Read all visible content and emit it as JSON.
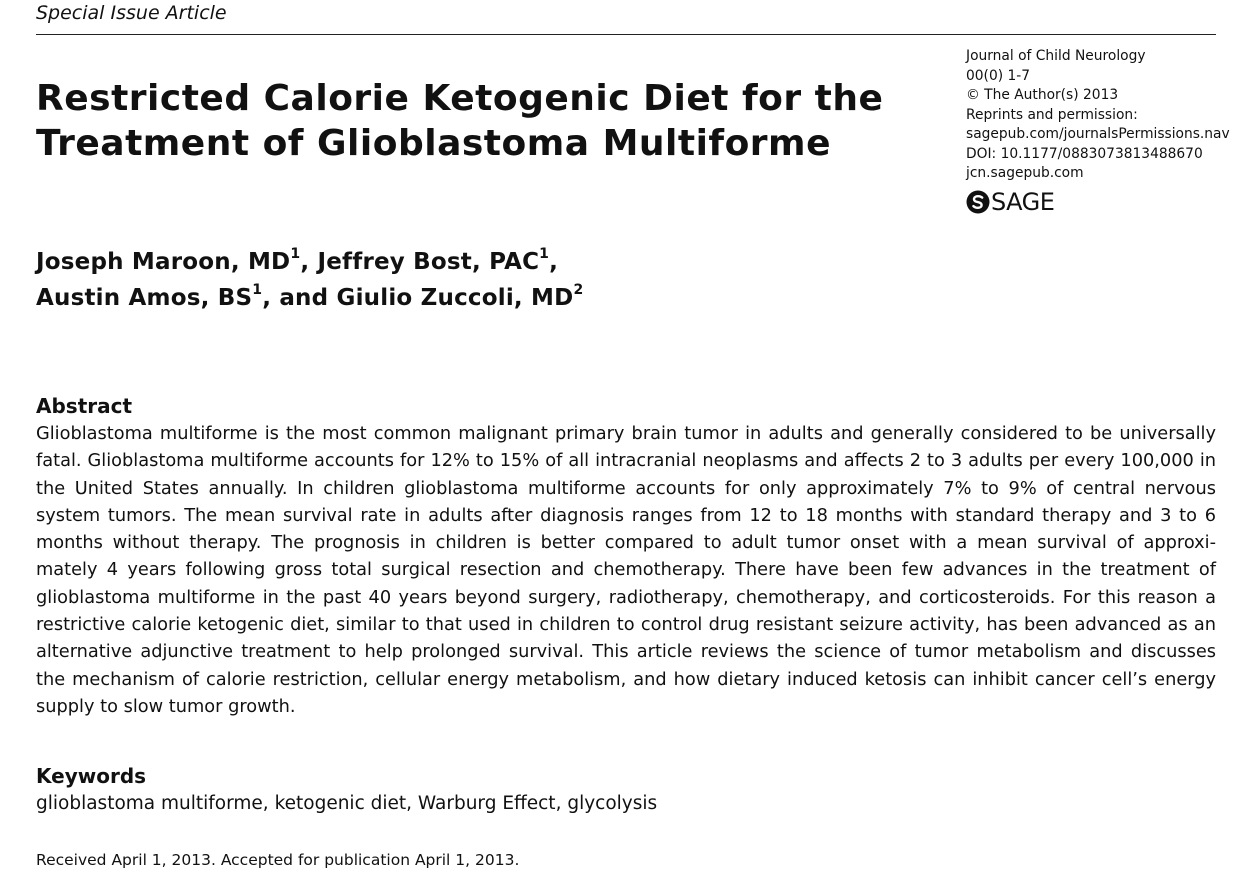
{
  "header": {
    "section_label": "Special Issue Article"
  },
  "article": {
    "title_lines": [
      "Restricted Calorie Ketogenic Diet for the",
      "Treatment of Glioblastoma Multiforme"
    ],
    "authors_line1": {
      "a1": "Joseph Maroon, MD",
      "a1_sup": "1",
      "sep1": ", ",
      "a2": "Jeffrey Bost, PAC",
      "a2_sup": "1",
      "sep2": ","
    },
    "authors_line2": {
      "a3": "Austin Amos, BS",
      "a3_sup": "1",
      "sep3": ", and ",
      "a4": "Giulio Zuccoli, MD",
      "a4_sup": "2"
    }
  },
  "journal_info": {
    "journal": "Journal of Child Neurology",
    "volume": "00(0) 1-7",
    "copyright": "© The Author(s) 2013",
    "reprints": "Reprints and permission:",
    "permissions_url": "sagepub.com/journalsPermissions.nav",
    "doi": "DOI: 10.1177/0883073813488670",
    "site": "jcn.sagepub.com",
    "logo_text": "SAGE"
  },
  "abstract": {
    "heading": "Abstract",
    "lines": [
      "Glioblastoma multiforme is the most common malignant primary brain tumor in adults and generally considered to be universally",
      "fatal. Glioblastoma multiforme accounts for 12% to 15% of all intracranial neoplasms and affects 2 to 3 adults per every 100,000 in",
      "the United States annually. In children glioblastoma multiforme accounts for only approximately 7% to 9% of central nervous",
      "system tumors. The mean survival rate in adults after diagnosis ranges from 12 to 18 months with standard therapy and 3 to 6",
      "months without therapy. The prognosis in children is better compared to adult tumor onset with a mean survival of approxi-",
      "mately 4 years following gross total surgical resection and chemotherapy. There have been few advances in the treatment of",
      "glioblastoma multiforme in the past 40 years beyond surgery, radiotherapy, chemotherapy, and corticosteroids. For this reason a",
      "restrictive calorie ketogenic diet, similar to that used in children to control drug resistant seizure activity, has been advanced as an",
      "alternative adjunctive treatment to help prolonged survival. This article reviews the science of tumor metabolism and discusses",
      "the mechanism of calorie restriction, cellular energy metabolism, and how dietary induced ketosis can inhibit cancer cell’s energy",
      "supply to slow tumor growth."
    ]
  },
  "keywords": {
    "heading": "Keywords",
    "text": "glioblastoma multiforme, ketogenic diet, Warburg Effect, glycolysis"
  },
  "footer": {
    "received": "Received April 1, 2013. Accepted for publication April 1, 2013."
  }
}
